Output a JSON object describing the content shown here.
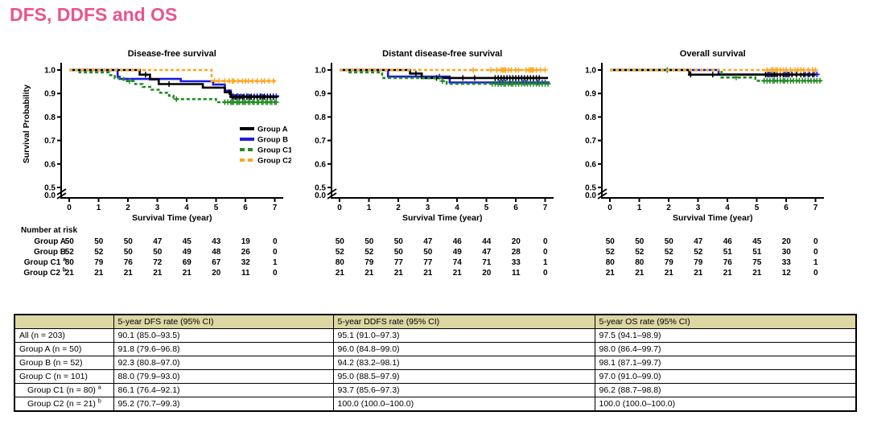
{
  "page_title": "DFS, DDFS and OS",
  "title_color": "#e9558d",
  "chart_data": [
    {
      "type": "line",
      "title": "Disease-free survival",
      "xlabel": "Survival Time (year)",
      "ylabel": "Survival Probability",
      "xticks": [
        0,
        1,
        2,
        3,
        4,
        5,
        6,
        7
      ],
      "yticks": [
        1.0,
        0.9,
        0.8,
        0.7,
        0.6,
        0.5
      ],
      "axis_break_label": "0.0",
      "ylim_visible": [
        0.5,
        1.0
      ],
      "legend": true,
      "legend_position": "right-middle",
      "series": [
        {
          "name": "Group A",
          "color": "#000000",
          "dash": null,
          "steps": [
            [
              0,
              1.0
            ],
            [
              2.4,
              0.98
            ],
            [
              2.75,
              0.96
            ],
            [
              3.05,
              0.94
            ],
            [
              4.55,
              0.925
            ],
            [
              5.3,
              0.905
            ],
            [
              5.5,
              0.885
            ],
            [
              7.1,
              0.885
            ]
          ],
          "censors": [
            2.6,
            3.4,
            5.45,
            5.55,
            5.65,
            5.7,
            5.8,
            5.9,
            5.95,
            6.05,
            6.15,
            6.2,
            6.3,
            6.4,
            6.5,
            6.6,
            6.65,
            6.75,
            6.85,
            6.95
          ]
        },
        {
          "name": "Group B",
          "color": "#1c1ce0",
          "dash": null,
          "steps": [
            [
              0,
              1.0
            ],
            [
              1.65,
              0.971
            ],
            [
              1.72,
              0.962
            ],
            [
              3.8,
              0.952
            ],
            [
              4.9,
              0.938
            ],
            [
              5.3,
              0.912
            ],
            [
              5.5,
              0.888
            ],
            [
              7.15,
              0.888
            ]
          ],
          "censors": [
            5.55,
            5.6,
            5.7,
            5.75,
            5.85,
            5.95,
            6.05,
            6.1,
            6.2,
            6.3,
            6.4,
            6.5,
            6.55,
            6.65,
            6.75,
            6.85,
            6.95,
            7.05
          ]
        },
        {
          "name": "Group C1",
          "color": "#228b22",
          "dash": [
            4,
            3
          ],
          "steps": [
            [
              0,
              1.0
            ],
            [
              0.35,
              0.99
            ],
            [
              1.35,
              0.978
            ],
            [
              1.55,
              0.965
            ],
            [
              1.85,
              0.953
            ],
            [
              2.25,
              0.94
            ],
            [
              2.5,
              0.928
            ],
            [
              2.8,
              0.916
            ],
            [
              3.1,
              0.903
            ],
            [
              3.4,
              0.89
            ],
            [
              3.55,
              0.876
            ],
            [
              5.0,
              0.863
            ],
            [
              7.15,
              0.863
            ]
          ],
          "censors": [
            2.05,
            3.65,
            5.3,
            5.4,
            5.5,
            5.55,
            5.6,
            5.7,
            5.75,
            5.8,
            5.9,
            5.95,
            6.0,
            6.1,
            6.15,
            6.25,
            6.3,
            6.4,
            6.45,
            6.55,
            6.6,
            6.7,
            6.75,
            6.85,
            6.9,
            7.0,
            7.05
          ]
        },
        {
          "name": "Group C2",
          "color": "#ffa51e",
          "dash": [
            4,
            3
          ],
          "steps": [
            [
              0,
              1.0
            ],
            [
              4.85,
              0.953
            ],
            [
              7.1,
              0.953
            ]
          ],
          "censors": [
            4.95,
            5.1,
            5.3,
            5.45,
            5.55,
            5.6,
            5.75,
            5.9,
            6.0,
            6.1,
            6.25,
            6.4,
            6.55,
            6.65,
            6.8,
            6.95
          ]
        }
      ]
    },
    {
      "type": "line",
      "title": "Distant disease-free survival",
      "xlabel": "Survival Time (year)",
      "ylabel": "",
      "xticks": [
        0,
        1,
        2,
        3,
        4,
        5,
        6,
        7
      ],
      "yticks": [
        1.0,
        0.9,
        0.8,
        0.7,
        0.6,
        0.5
      ],
      "axis_break_label": "0.0",
      "ylim_visible": [
        0.5,
        1.0
      ],
      "legend": false,
      "series": [
        {
          "name": "Group A",
          "color": "#000000",
          "dash": null,
          "steps": [
            [
              0,
              1.0
            ],
            [
              2.4,
              0.985
            ],
            [
              2.8,
              0.966
            ],
            [
              7.1,
              0.966
            ]
          ],
          "censors": [
            2.6,
            3.3,
            4.2,
            4.6,
            5.3,
            5.4,
            5.5,
            5.6,
            5.7,
            5.8,
            5.9,
            6.0,
            6.1,
            6.2,
            6.3,
            6.4,
            6.5,
            6.6,
            6.7,
            6.8
          ]
        },
        {
          "name": "Group B",
          "color": "#1c1ce0",
          "dash": null,
          "steps": [
            [
              0,
              1.0
            ],
            [
              1.65,
              0.972
            ],
            [
              3.75,
              0.947
            ],
            [
              7.15,
              0.947
            ]
          ],
          "censors": [
            3.4,
            5.3,
            5.45,
            5.55,
            5.65,
            5.8,
            5.9,
            6.0,
            6.1,
            6.25,
            6.35,
            6.5,
            6.6,
            6.75,
            6.9,
            7.0
          ]
        },
        {
          "name": "Group C1",
          "color": "#228b22",
          "dash": [
            4,
            3
          ],
          "steps": [
            [
              0,
              1.0
            ],
            [
              0.3,
              0.99
            ],
            [
              1.45,
              0.966
            ],
            [
              3.5,
              0.953
            ],
            [
              3.65,
              0.941
            ],
            [
              7.15,
              0.941
            ]
          ],
          "censors": [
            3.5,
            5.2,
            5.3,
            5.4,
            5.5,
            5.6,
            5.65,
            5.75,
            5.85,
            5.9,
            6.0,
            6.1,
            6.2,
            6.3,
            6.4,
            6.5,
            6.6,
            6.7,
            6.8,
            6.9,
            7.0,
            7.1
          ]
        },
        {
          "name": "Group C2",
          "color": "#ffa51e",
          "dash": [
            4,
            3
          ],
          "steps": [
            [
              0,
              1.0
            ],
            [
              7.1,
              1.0
            ]
          ],
          "censors": [
            4.55,
            5.15,
            5.35,
            5.5,
            5.55,
            5.6,
            5.65,
            5.75,
            5.85,
            6.0,
            6.1,
            6.35,
            6.45,
            6.5,
            6.55,
            6.6,
            6.7,
            6.85,
            7.0
          ]
        }
      ]
    },
    {
      "type": "line",
      "title": "Overall survival",
      "xlabel": "Survival Time (year)",
      "ylabel": "",
      "xticks": [
        0,
        1,
        2,
        3,
        4,
        5,
        6,
        7
      ],
      "yticks": [
        1.0,
        0.9,
        0.8,
        0.7,
        0.6,
        0.5
      ],
      "axis_break_label": "0.0",
      "ylim_visible": [
        0.5,
        1.0
      ],
      "legend": false,
      "series": [
        {
          "name": "Group A",
          "color": "#000000",
          "dash": null,
          "steps": [
            [
              0,
              1.0
            ],
            [
              2.7,
              0.98
            ],
            [
              7.0,
              0.98
            ]
          ],
          "censors": [
            2.75,
            3.5,
            5.3,
            5.4,
            5.5,
            5.6,
            5.7,
            5.8,
            5.9,
            6.0,
            6.1,
            6.2,
            6.35,
            6.5,
            6.6,
            6.75,
            6.9
          ]
        },
        {
          "name": "Group B",
          "color": "#1c1ce0",
          "dash": null,
          "steps": [
            [
              0,
              1.0
            ],
            [
              3.7,
              0.981
            ],
            [
              7.1,
              0.981
            ]
          ],
          "censors": [
            5.35,
            5.45,
            5.55,
            5.65,
            5.8,
            5.95,
            6.05,
            6.2,
            6.35,
            6.5,
            6.65,
            6.8,
            6.95,
            7.05
          ]
        },
        {
          "name": "Group C1",
          "color": "#228b22",
          "dash": [
            4,
            3
          ],
          "steps": [
            [
              0,
              1.0
            ],
            [
              3.8,
              0.968
            ],
            [
              4.95,
              0.954
            ],
            [
              7.2,
              0.954
            ]
          ],
          "censors": [
            1.95,
            4.3,
            5.25,
            5.35,
            5.45,
            5.55,
            5.6,
            5.7,
            5.8,
            5.9,
            5.95,
            6.05,
            6.15,
            6.25,
            6.35,
            6.45,
            6.55,
            6.65,
            6.75,
            6.85,
            6.95,
            7.05,
            7.15
          ]
        },
        {
          "name": "Group C2",
          "color": "#ffa51e",
          "dash": [
            4,
            3
          ],
          "steps": [
            [
              0,
              1.0
            ],
            [
              7.1,
              1.0
            ]
          ],
          "censors": [
            5.35,
            5.5,
            5.55,
            5.65,
            5.7,
            5.8,
            5.9,
            6.0,
            6.15,
            6.3,
            6.4,
            6.5,
            6.6,
            6.75,
            6.9,
            7.0
          ]
        }
      ]
    }
  ],
  "number_at_risk": {
    "label": "Number at risk",
    "row_labels": [
      "Group A",
      "Group B",
      "Group C1",
      "Group C2"
    ],
    "row_sups": [
      "",
      "",
      "a",
      "b"
    ],
    "tables": [
      [
        [
          50,
          50,
          50,
          47,
          45,
          43,
          19,
          0
        ],
        [
          52,
          52,
          50,
          50,
          49,
          48,
          26,
          0
        ],
        [
          80,
          79,
          76,
          72,
          69,
          67,
          32,
          1
        ],
        [
          21,
          21,
          21,
          21,
          21,
          20,
          11,
          0
        ]
      ],
      [
        [
          50,
          50,
          50,
          47,
          46,
          44,
          20,
          0
        ],
        [
          52,
          52,
          50,
          50,
          49,
          47,
          28,
          0
        ],
        [
          80,
          79,
          77,
          77,
          74,
          71,
          33,
          1
        ],
        [
          21,
          21,
          21,
          21,
          21,
          20,
          11,
          0
        ]
      ],
      [
        [
          50,
          50,
          50,
          47,
          46,
          45,
          20,
          0
        ],
        [
          52,
          52,
          52,
          52,
          51,
          51,
          30,
          0
        ],
        [
          80,
          80,
          79,
          79,
          76,
          75,
          33,
          1
        ],
        [
          21,
          21,
          21,
          21,
          21,
          21,
          12,
          0
        ]
      ]
    ]
  },
  "summary_table": {
    "header_bg": "#dcd7a3",
    "header": [
      "",
      "5-year DFS rate (95% CI)",
      "5-year DDFS rate (95% CI)",
      "5-year OS rate (95% CI)"
    ],
    "rows": [
      {
        "label": "All (n = 203)",
        "sup": "",
        "indent": false,
        "values": [
          "90.1 (85.0–93.5)",
          "95.1 (91.0–97.3)",
          "97.5 (94.1–98.9)"
        ]
      },
      {
        "label": "Group A (n = 50)",
        "sup": "",
        "indent": false,
        "values": [
          "91.8 (79.6–96.8)",
          "96.0 (84.8–99.0)",
          "98.0 (86.4–99.7)"
        ]
      },
      {
        "label": "Group B (n = 52)",
        "sup": "",
        "indent": false,
        "values": [
          "92.3 (80.8–97.0)",
          "94.2 (83.2–98.1)",
          "98.1 (87.1–99.7)"
        ]
      },
      {
        "label": "Group C (n = 101)",
        "sup": "",
        "indent": false,
        "values": [
          "88.0 (79.9–93.0)",
          "95.0 (88.5–97.9)",
          "97.0 (91.0–99.0)"
        ]
      },
      {
        "label": "Group C1 (n = 80) ",
        "sup": "a",
        "indent": true,
        "values": [
          "86.1 (76.4–92.1)",
          "93.7 (85.6–97.3)",
          "96.2 (88.7–98.8)"
        ]
      },
      {
        "label": "Group C2 (n = 21) ",
        "sup": "b",
        "indent": true,
        "values": [
          "95.2 (70.7–99.3)",
          "100.0 (100.0–100.0)",
          "100.0 (100.0–100.0)"
        ]
      }
    ]
  }
}
